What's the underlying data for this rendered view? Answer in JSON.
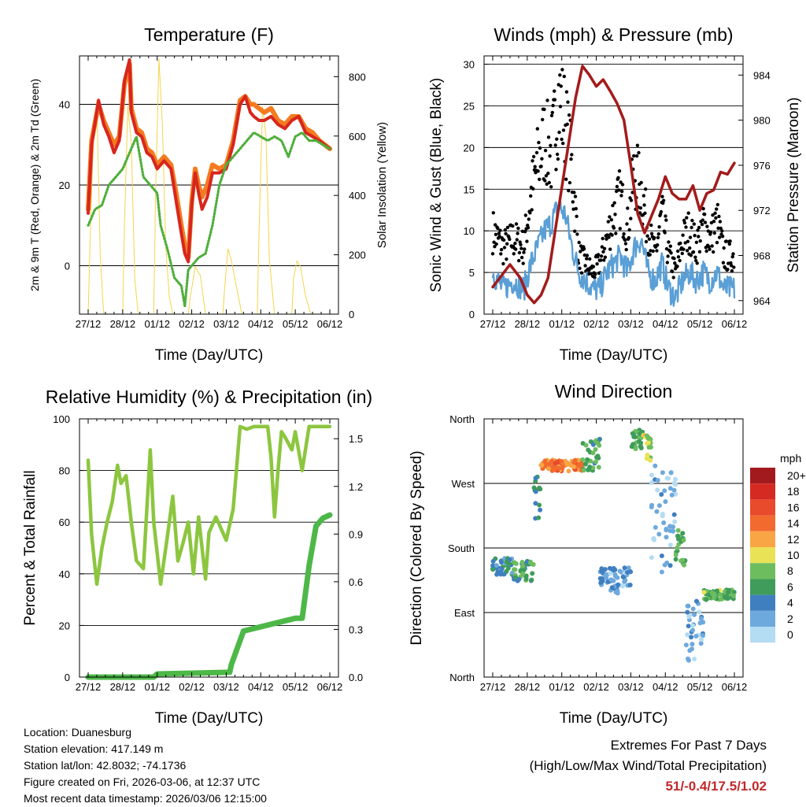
{
  "info": {
    "location": "Location: Duanesburg",
    "elevation": "Station elevation: 417.149 m",
    "latlon": "Station lat/lon: 42.8032; -74.1736",
    "created": "Figure created on Fri, 2026-03-06, at 12:37 UTC",
    "timestamp": "Most recent data timestamp: 2026/03/06 12:15:00"
  },
  "extremes": {
    "title": "Extremes For Past 7 Days",
    "subtitle": "(High/Low/Max Wind/Total Precipitation)",
    "values": "51/-0.4/17.5/1.02"
  },
  "colors": {
    "red": "#d7261e",
    "orange": "#f47b20",
    "green": "#4fae3b",
    "yellow": "#f5d44a",
    "black": "#000000",
    "blue": "#5a9fd6",
    "maroon": "#a31b1b",
    "rh": "#8cc63f",
    "precip": "#4db848"
  },
  "chart_data": [
    {
      "type": "line",
      "title": "Temperature (F)",
      "xlabel": "Time (Day/UTC)",
      "ylabel": "2m & 9m T (Red, Orange) & 2m Td (Green)",
      "y2label": "Solar Insolation (Yellow)",
      "x_ticks": [
        "27/12",
        "28/12",
        "01/12",
        "02/12",
        "03/12",
        "04/12",
        "05/12",
        "06/12"
      ],
      "xlim": [
        0,
        7
      ],
      "ylim": [
        -12,
        52
      ],
      "y_ticks": [
        0,
        20,
        40
      ],
      "y2lim": [
        0,
        870
      ],
      "y2_ticks": [
        0,
        200,
        400,
        600,
        800
      ],
      "series": [
        {
          "name": "2m T",
          "color": "red",
          "axis": "y",
          "x": [
            0,
            0.1,
            0.3,
            0.45,
            0.6,
            0.75,
            0.9,
            1.05,
            1.2,
            1.25,
            1.4,
            1.55,
            1.7,
            1.85,
            2.0,
            2.2,
            2.4,
            2.55,
            2.7,
            2.8,
            2.9,
            3.0,
            3.1,
            3.2,
            3.3,
            3.45,
            3.6,
            3.8,
            4.0,
            4.2,
            4.4,
            4.55,
            4.7,
            4.8,
            4.95,
            5.1,
            5.3,
            5.5,
            5.7,
            5.9,
            6.1,
            6.3,
            6.5,
            6.7,
            7.0
          ],
          "y": [
            13,
            30,
            41,
            35,
            32,
            28,
            31,
            46,
            51,
            38,
            33,
            32,
            28,
            27,
            24,
            26,
            24,
            16,
            8,
            3,
            1,
            15,
            23,
            18,
            14,
            17,
            23,
            23,
            24,
            30,
            40,
            42,
            38,
            37,
            36,
            36,
            37,
            35,
            34,
            36,
            37,
            33,
            32,
            31,
            29
          ]
        },
        {
          "name": "9m T",
          "color": "orange",
          "axis": "y",
          "x": [
            0,
            0.1,
            0.3,
            0.45,
            0.6,
            0.75,
            0.9,
            1.05,
            1.2,
            1.25,
            1.4,
            1.55,
            1.7,
            1.85,
            2.0,
            2.2,
            2.4,
            2.55,
            2.7,
            2.8,
            2.9,
            3.0,
            3.1,
            3.2,
            3.3,
            3.45,
            3.6,
            3.8,
            4.0,
            4.2,
            4.4,
            4.55,
            4.7,
            4.8,
            4.95,
            5.1,
            5.3,
            5.5,
            5.7,
            5.9,
            6.1,
            6.3,
            6.5,
            6.7,
            7.0
          ],
          "y": [
            14,
            31,
            40,
            36,
            33,
            30,
            32,
            45,
            50,
            39,
            34,
            33,
            29,
            28,
            25,
            27,
            25,
            18,
            10,
            5,
            2,
            16,
            24,
            20,
            17,
            20,
            25,
            24,
            25,
            31,
            41,
            42,
            40,
            40,
            39,
            38,
            39,
            36,
            35,
            37,
            37,
            34,
            33,
            31,
            29
          ]
        },
        {
          "name": "2m Td",
          "color": "green",
          "axis": "y",
          "x": [
            0,
            0.2,
            0.4,
            0.6,
            0.8,
            1.0,
            1.2,
            1.4,
            1.6,
            1.8,
            2.0,
            2.1,
            2.3,
            2.5,
            2.7,
            2.8,
            2.9,
            3.0,
            3.2,
            3.4,
            3.6,
            3.8,
            4.0,
            4.2,
            4.4,
            4.6,
            4.8,
            5.0,
            5.2,
            5.4,
            5.6,
            5.8,
            6.0,
            6.2,
            6.4,
            6.6,
            6.8,
            7.0
          ],
          "y": [
            10,
            14,
            15,
            20,
            22,
            24,
            28,
            32,
            22,
            20,
            18,
            10,
            4,
            -3,
            -5,
            -10,
            -1,
            0,
            2,
            3,
            10,
            20,
            25,
            27,
            29,
            31,
            33,
            32,
            31,
            32,
            31,
            27,
            32,
            33,
            31,
            31,
            30,
            29
          ]
        },
        {
          "name": "Solar Insolation",
          "color": "yellow",
          "axis": "y2",
          "x": [
            0,
            0.05,
            0.15,
            0.25,
            0.35,
            0.45,
            1.0,
            1.05,
            1.15,
            1.25,
            1.35,
            1.45,
            1.9,
            1.95,
            2.05,
            2.15,
            2.25,
            2.35,
            2.45,
            2.9,
            2.95,
            3.1,
            3.25,
            3.4,
            3.9,
            3.95,
            4.05,
            4.15,
            4.3,
            4.45,
            4.9,
            4.95,
            5.05,
            5.15,
            5.25,
            5.4,
            5.9,
            5.95,
            6.05,
            6.15,
            6.3,
            6.45,
            6.6,
            7.0
          ],
          "y": [
            0,
            220,
            600,
            720,
            200,
            0,
            0,
            300,
            700,
            580,
            120,
            0,
            0,
            380,
            860,
            640,
            220,
            60,
            0,
            0,
            50,
            160,
            130,
            0,
            0,
            80,
            220,
            180,
            90,
            0,
            0,
            280,
            700,
            600,
            180,
            0,
            0,
            120,
            180,
            160,
            60,
            0,
            0,
            0
          ]
        }
      ]
    },
    {
      "type": "scatter",
      "title": "Winds (mph) & Pressure (mb)",
      "xlabel": "Time (Day/UTC)",
      "ylabel": "Sonic Wind & Gust (Blue, Black)",
      "y2label": "Station Pressure (Maroon)",
      "x_ticks": [
        "27/12",
        "28/12",
        "01/12",
        "02/12",
        "03/12",
        "04/12",
        "05/12",
        "06/12"
      ],
      "xlim": [
        0,
        7
      ],
      "ylim": [
        0,
        31
      ],
      "y_ticks": [
        0,
        5,
        10,
        15,
        20,
        25,
        30
      ],
      "y2lim": [
        962.8,
        985.7
      ],
      "y2_ticks": [
        964,
        968,
        972,
        976,
        980,
        984
      ],
      "series": [
        {
          "name": "Wind",
          "color": "blue",
          "axis": "y",
          "x": [
            0,
            0.3,
            0.6,
            0.9,
            1.1,
            1.3,
            1.5,
            1.7,
            1.9,
            2.1,
            2.3,
            2.5,
            2.7,
            2.9,
            3.1,
            3.3,
            3.5,
            3.7,
            3.9,
            4.1,
            4.3,
            4.5,
            4.7,
            4.9,
            5.1,
            5.3,
            5.5,
            5.7,
            5.9,
            6.1,
            6.3,
            6.5,
            6.7,
            7.0
          ],
          "y": [
            5,
            3,
            4,
            3,
            6,
            8,
            10,
            11,
            13,
            12,
            8,
            5,
            4,
            3,
            3,
            5,
            6,
            7,
            5,
            8,
            9,
            5,
            4,
            6,
            3,
            2,
            4,
            5,
            4,
            5,
            4,
            5,
            3,
            3
          ]
        },
        {
          "name": "Gust",
          "color": "black",
          "axis": "y",
          "x": [
            0,
            0.3,
            0.6,
            0.9,
            1.1,
            1.3,
            1.5,
            1.7,
            1.9,
            2.1,
            2.3,
            2.5,
            2.7,
            2.9,
            3.1,
            3.3,
            3.5,
            3.7,
            3.9,
            4.1,
            4.3,
            4.5,
            4.7,
            4.9,
            5.1,
            5.3,
            5.5,
            5.7,
            5.9,
            6.1,
            6.3,
            6.5,
            6.7,
            7.0
          ],
          "y": [
            10,
            8,
            9,
            8,
            14,
            18,
            21,
            19,
            26,
            23,
            17,
            7,
            6,
            5,
            6,
            9,
            12,
            14,
            10,
            17,
            15,
            10,
            7,
            12,
            7,
            5,
            9,
            10,
            8,
            11,
            9,
            11,
            7,
            7
          ]
        },
        {
          "name": "Station Pressure",
          "color": "maroon",
          "axis": "y2",
          "x": [
            0,
            0.2,
            0.5,
            0.8,
            1.0,
            1.2,
            1.4,
            1.6,
            1.8,
            2.0,
            2.2,
            2.4,
            2.6,
            2.8,
            3.0,
            3.2,
            3.4,
            3.6,
            3.8,
            4.0,
            4.2,
            4.4,
            4.6,
            4.8,
            5.0,
            5.2,
            5.4,
            5.6,
            5.8,
            6.0,
            6.2,
            6.4,
            6.6,
            6.8,
            7.0
          ],
          "y": [
            965.2,
            966,
            967.2,
            966,
            964.5,
            963.8,
            964.5,
            966,
            970,
            974,
            978,
            982,
            984.8,
            984,
            983,
            983.6,
            982.6,
            981.5,
            980,
            976,
            971.7,
            970,
            971.5,
            973,
            975,
            973.5,
            973,
            973,
            974.2,
            972,
            973.5,
            973.8,
            975.4,
            975.2,
            976.2
          ]
        }
      ]
    },
    {
      "type": "line",
      "title": "Relative Humidity (%) & Precipitation (in)",
      "xlabel": "Time (Day/UTC)",
      "ylabel": "Percent & Total Rainfall",
      "x_ticks": [
        "27/12",
        "28/12",
        "01/12",
        "02/12",
        "03/12",
        "04/12",
        "05/12",
        "06/12"
      ],
      "xlim": [
        0,
        7
      ],
      "ylim": [
        0,
        100
      ],
      "y_ticks": [
        0,
        20,
        40,
        60,
        80,
        100
      ],
      "y2lim": [
        0,
        1.625
      ],
      "y2_ticks": [
        "0.0",
        "0.3",
        "0.6",
        "0.9",
        "1.2",
        "1.5"
      ],
      "series": [
        {
          "name": "Relative Humidity",
          "color": "rh",
          "axis": "y",
          "x": [
            0,
            0.1,
            0.25,
            0.4,
            0.55,
            0.7,
            0.85,
            0.95,
            1.1,
            1.25,
            1.4,
            1.6,
            1.8,
            1.9,
            2.1,
            2.3,
            2.45,
            2.6,
            2.75,
            2.9,
            3.05,
            3.2,
            3.4,
            3.5,
            3.7,
            3.9,
            4.0,
            4.2,
            4.4,
            4.6,
            4.8,
            5.0,
            5.2,
            5.3,
            5.4,
            5.5,
            5.6,
            5.7,
            5.9,
            6.0,
            6.2,
            6.4,
            6.6,
            7.0
          ],
          "y": [
            84,
            55,
            36,
            50,
            60,
            68,
            82,
            75,
            78,
            60,
            45,
            42,
            88,
            60,
            36,
            55,
            70,
            45,
            52,
            60,
            40,
            62,
            38,
            56,
            62,
            56,
            53,
            65,
            97,
            96,
            97,
            97,
            97,
            85,
            62,
            80,
            95,
            93,
            88,
            95,
            80,
            97,
            97,
            97
          ]
        },
        {
          "name": "Total Precipitation",
          "color": "precip",
          "axis": "y2",
          "x": [
            0,
            1.9,
            2.0,
            4.1,
            4.15,
            4.35,
            4.5,
            6.0,
            6.2,
            6.4,
            6.6,
            6.8,
            7.0
          ],
          "y": [
            0,
            0,
            0.02,
            0.03,
            0.08,
            0.2,
            0.29,
            0.37,
            0.37,
            0.7,
            0.95,
            1.0,
            1.02
          ]
        }
      ]
    },
    {
      "type": "scatter",
      "title": "Wind Direction",
      "xlabel": "Time (Day/UTC)",
      "ylabel": "Direction (Colored By Speed)",
      "x_ticks": [
        "27/12",
        "28/12",
        "01/12",
        "02/12",
        "03/12",
        "04/12",
        "05/12",
        "06/12"
      ],
      "xlim": [
        0,
        7
      ],
      "ylim": [
        0,
        360
      ],
      "y_ticks": [
        {
          "v": 0,
          "label": "North"
        },
        {
          "v": 90,
          "label": "East"
        },
        {
          "v": 180,
          "label": "South"
        },
        {
          "v": 270,
          "label": "West"
        },
        {
          "v": 360,
          "label": "North"
        }
      ],
      "legend_title": "mph",
      "legend_labels": [
        "20+",
        "18",
        "16",
        "14",
        "12",
        "10",
        "8",
        "6",
        "4",
        "2",
        "0"
      ],
      "legend_colors": [
        "#a21a1e",
        "#d42a22",
        "#e84a2c",
        "#f26a2e",
        "#f9a545",
        "#e9e257",
        "#6dbd5f",
        "#3f9c5a",
        "#3f7fc0",
        "#6ea9dd",
        "#b4dcf3"
      ],
      "clusters": [
        {
          "x0": 0.0,
          "x1": 0.6,
          "dir": 155,
          "spread": 12,
          "speed": 4
        },
        {
          "x0": 0.6,
          "x1": 1.2,
          "dir": 148,
          "spread": 14,
          "speed": 6
        },
        {
          "x0": 1.2,
          "x1": 1.4,
          "dir": 250,
          "spread": 30,
          "speed": 5
        },
        {
          "x0": 1.4,
          "x1": 2.6,
          "dir": 295,
          "spread": 8,
          "speed": 13
        },
        {
          "x0": 2.6,
          "x1": 3.1,
          "dir": 310,
          "spread": 22,
          "speed": 6
        },
        {
          "x0": 3.1,
          "x1": 3.4,
          "dir": 140,
          "spread": 12,
          "speed": 3
        },
        {
          "x0": 3.4,
          "x1": 4.0,
          "dir": 135,
          "spread": 18,
          "speed": 2
        },
        {
          "x0": 4.0,
          "x1": 4.35,
          "dir": 330,
          "spread": 15,
          "speed": 6
        },
        {
          "x0": 4.35,
          "x1": 4.6,
          "dir": 320,
          "spread": 18,
          "speed": 9
        },
        {
          "x0": 4.6,
          "x1": 5.3,
          "dir": 220,
          "spread": 80,
          "speed": 1
        },
        {
          "x0": 5.3,
          "x1": 5.6,
          "dir": 180,
          "spread": 25,
          "speed": 6
        },
        {
          "x0": 5.6,
          "x1": 6.1,
          "dir": 60,
          "spread": 50,
          "speed": 2
        },
        {
          "x0": 6.1,
          "x1": 7.0,
          "dir": 115,
          "spread": 7,
          "speed": 7
        }
      ]
    }
  ]
}
